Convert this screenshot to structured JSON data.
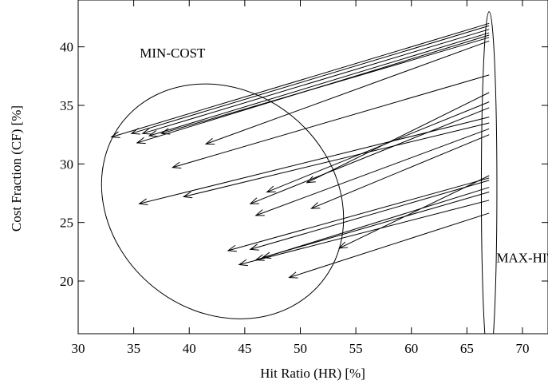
{
  "chart_data": {
    "type": "scatter",
    "title": "",
    "xlabel": "Hit Ratio (HR) [%]",
    "ylabel": "Cost Fraction (CF) [%]",
    "xlim": [
      30,
      72.3
    ],
    "ylim": [
      15.5,
      44
    ],
    "xticks": [
      "30",
      "35",
      "40",
      "45",
      "50",
      "55",
      "60",
      "65",
      "70"
    ],
    "yticks": [
      "20",
      "25",
      "30",
      "35",
      "40"
    ],
    "grid": false,
    "annotations": [
      {
        "label": "MIN-COST",
        "x": 38.5,
        "y": 39.1
      },
      {
        "label": "MAX-HIT",
        "x": 70.3,
        "y": 21.6
      }
    ],
    "regions": [
      {
        "label": "MIN-COST",
        "cx": 43.0,
        "cy": 26.8,
        "rx": 11.5,
        "ry": 9.4,
        "angle_deg": 39
      },
      {
        "label": "MAX-HIT",
        "cx": 67.0,
        "cy": 28.0,
        "rx": 0.7,
        "ry": 15.0,
        "angle_deg": 0
      }
    ],
    "series": [
      {
        "arrows": [
          {
            "from": [
              67.0,
              42.0
            ],
            "to": [
              33.0,
              32.3
            ]
          },
          {
            "from": [
              67.0,
              41.8
            ],
            "to": [
              34.8,
              32.6
            ]
          },
          {
            "from": [
              67.0,
              41.5
            ],
            "to": [
              35.8,
              32.6
            ]
          },
          {
            "from": [
              67.0,
              41.2
            ],
            "to": [
              36.4,
              32.4
            ]
          },
          {
            "from": [
              67.0,
              41.0
            ],
            "to": [
              35.3,
              31.8
            ]
          },
          {
            "from": [
              67.0,
              40.8
            ],
            "to": [
              37.5,
              32.6
            ]
          },
          {
            "from": [
              67.0,
              40.5
            ],
            "to": [
              41.5,
              31.7
            ]
          },
          {
            "from": [
              67.0,
              37.6
            ],
            "to": [
              38.5,
              29.7
            ]
          },
          {
            "from": [
              67.0,
              36.1
            ],
            "to": [
              50.6,
              28.4
            ]
          },
          {
            "from": [
              67.0,
              35.3
            ],
            "to": [
              47.0,
              27.6
            ]
          },
          {
            "from": [
              67.0,
              34.8
            ],
            "to": [
              45.5,
              26.6
            ]
          },
          {
            "from": [
              67.0,
              34.0
            ],
            "to": [
              35.5,
              26.6
            ]
          },
          {
            "from": [
              67.0,
              33.5
            ],
            "to": [
              39.5,
              27.2
            ]
          },
          {
            "from": [
              67.0,
              33.0
            ],
            "to": [
              46.0,
              25.6
            ]
          },
          {
            "from": [
              67.0,
              32.5
            ],
            "to": [
              51.0,
              26.2
            ]
          },
          {
            "from": [
              67.0,
              29.0
            ],
            "to": [
              53.5,
              22.8
            ]
          },
          {
            "from": [
              67.0,
              28.8
            ],
            "to": [
              43.5,
              22.6
            ]
          },
          {
            "from": [
              67.0,
              28.6
            ],
            "to": [
              45.5,
              22.7
            ]
          },
          {
            "from": [
              67.0,
              28.0
            ],
            "to": [
              46.0,
              21.8
            ]
          },
          {
            "from": [
              67.0,
              27.6
            ],
            "to": [
              46.6,
              22.0
            ]
          },
          {
            "from": [
              67.0,
              26.9
            ],
            "to": [
              44.5,
              21.4
            ]
          },
          {
            "from": [
              67.0,
              25.8
            ],
            "to": [
              49.0,
              20.3
            ]
          }
        ]
      }
    ]
  }
}
